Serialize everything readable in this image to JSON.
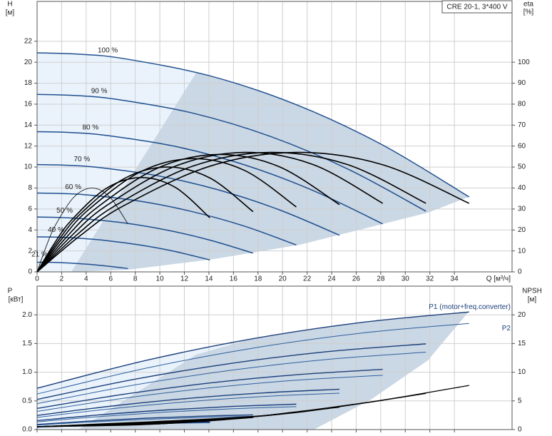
{
  "header": {
    "model": "CRE 20-1, 3*400 V"
  },
  "chart_data": [
    {
      "type": "line",
      "y_label": "H",
      "y_unit": "[м]",
      "y2_label": "eta",
      "y2_unit": "[%]",
      "x_label": "Q [м³/ч]",
      "xlim": [
        0,
        38.7
      ],
      "xticks": [
        0,
        2,
        4,
        6,
        8,
        10,
        12,
        14,
        16,
        18,
        20,
        22,
        24,
        26,
        28,
        30,
        32,
        34
      ],
      "xtick_labels": true,
      "ylim": [
        0,
        25.8
      ],
      "yticks": [
        0,
        2,
        4,
        6,
        8,
        10,
        12,
        14,
        16,
        18,
        20,
        22
      ],
      "y2lim": [
        0,
        129
      ],
      "y2ticks": [
        0,
        10,
        20,
        30,
        40,
        50,
        60,
        70,
        80,
        90,
        100
      ],
      "grid": true,
      "series_label_position": "start",
      "series": [
        {
          "name": "100 %",
          "color": "#1f4f8f",
          "width": 1.5,
          "x": [
            0,
            3.52,
            7.04,
            14.08,
            21.12,
            28.16,
            35.2
          ],
          "values": [
            20.9,
            20.76,
            20.35,
            18.7,
            15.95,
            12.1,
            7.15
          ]
        },
        {
          "name": "90 %",
          "color": "#1f4f8f",
          "width": 1.5,
          "x": [
            0,
            3.17,
            6.34,
            12.67,
            19.01,
            25.34,
            31.68
          ],
          "values": [
            16.93,
            16.82,
            16.48,
            15.15,
            12.92,
            9.8,
            5.79
          ]
        },
        {
          "name": "80 %",
          "color": "#1f4f8f",
          "width": 1.5,
          "x": [
            0,
            2.82,
            5.63,
            11.26,
            16.9,
            22.53,
            28.16
          ],
          "values": [
            13.38,
            13.29,
            13.02,
            11.97,
            10.21,
            7.74,
            4.58
          ]
        },
        {
          "name": "70 %",
          "color": "#1f4f8f",
          "width": 1.5,
          "x": [
            0,
            2.46,
            4.93,
            9.86,
            14.78,
            19.71,
            24.64
          ],
          "values": [
            10.24,
            10.17,
            9.97,
            9.16,
            7.82,
            5.93,
            3.5
          ]
        },
        {
          "name": "60 %",
          "color": "#1f4f8f",
          "width": 1.5,
          "x": [
            0,
            2.11,
            4.22,
            8.45,
            12.67,
            16.9,
            21.12
          ],
          "values": [
            7.52,
            7.47,
            7.33,
            6.73,
            5.74,
            4.36,
            2.57
          ]
        },
        {
          "name": "50 %",
          "color": "#1f4f8f",
          "width": 1.5,
          "x": [
            0,
            1.76,
            3.52,
            7.04,
            10.56,
            14.08,
            17.6
          ],
          "values": [
            5.23,
            5.19,
            5.09,
            4.68,
            3.99,
            3.03,
            1.79
          ]
        },
        {
          "name": "40 %",
          "color": "#1f4f8f",
          "width": 1.5,
          "x": [
            0,
            1.41,
            2.82,
            5.63,
            8.45,
            11.26,
            14.08
          ],
          "values": [
            3.34,
            3.32,
            3.26,
            2.99,
            2.55,
            1.94,
            1.14
          ]
        },
        {
          "name": "21 %",
          "color": "#1f4f8f",
          "width": 1.5,
          "x": [
            0,
            0.74,
            1.48,
            2.96,
            4.44,
            5.91,
            7.39
          ],
          "values": [
            0.92,
            0.92,
            0.9,
            0.82,
            0.7,
            0.53,
            0.32
          ]
        },
        {
          "color": "#000000",
          "width": 1.6,
          "axis": "y2",
          "x": [
            0,
            3.52,
            7.04,
            14.08,
            21.12,
            28.16,
            35.2
          ],
          "values": [
            0,
            17.3,
            31.5,
            50.4,
            57,
            51.1,
            32.7
          ]
        },
        {
          "color": "#000000",
          "width": 1.6,
          "axis": "y2",
          "x": [
            0,
            3.17,
            6.34,
            12.67,
            19.01,
            25.34,
            31.68
          ],
          "values": [
            0,
            17.3,
            31.5,
            50.4,
            57,
            51.1,
            32.7
          ]
        },
        {
          "color": "#000000",
          "width": 1.6,
          "axis": "y2",
          "x": [
            0,
            2.82,
            5.63,
            11.26,
            16.9,
            22.53,
            28.16
          ],
          "values": [
            0,
            17.3,
            31.5,
            50.4,
            57,
            51.1,
            32.7
          ]
        },
        {
          "color": "#000000",
          "width": 1.6,
          "axis": "y2",
          "x": [
            0,
            2.46,
            4.93,
            9.86,
            14.78,
            19.71,
            24.64
          ],
          "values": [
            0,
            17,
            30.9,
            49.6,
            56,
            50.2,
            32.1
          ]
        },
        {
          "color": "#000000",
          "width": 1.6,
          "axis": "y2",
          "x": [
            0,
            2.11,
            4.22,
            8.45,
            12.67,
            16.9,
            21.12
          ],
          "values": [
            0,
            16.4,
            29.8,
            47.8,
            54,
            48.4,
            31
          ]
        },
        {
          "color": "#000000",
          "width": 1.6,
          "axis": "y2",
          "x": [
            0,
            1.76,
            3.52,
            7.04,
            10.56,
            14.08,
            17.6
          ],
          "values": [
            0,
            15.2,
            27.6,
            44.3,
            50,
            44.8,
            28.7
          ]
        },
        {
          "color": "#000000",
          "width": 1.6,
          "axis": "y2",
          "x": [
            0,
            1.41,
            2.82,
            5.63,
            8.45,
            11.26,
            14.08
          ],
          "values": [
            0,
            13.6,
            24.8,
            39.8,
            45,
            40.3,
            25.8
          ]
        },
        {
          "color": "#000000",
          "width": 0.8,
          "axis": "y2",
          "x": [
            0,
            0.74,
            1.48,
            2.96,
            4.44,
            5.91,
            7.39
          ],
          "values": [
            0,
            12.1,
            22.1,
            35.4,
            40,
            35.8,
            23
          ]
        }
      ]
    },
    {
      "type": "line",
      "y_label": "P",
      "y_unit": "[кВт]",
      "y2_label": "NPSH",
      "y2_unit": "[м]",
      "xlim": [
        0,
        38.7
      ],
      "xticks": [
        0,
        2,
        4,
        6,
        8,
        10,
        12,
        14,
        16,
        18,
        20,
        22,
        24,
        26,
        28,
        30,
        32,
        34
      ],
      "xtick_labels": false,
      "ylim": [
        0,
        2.5
      ],
      "yticks": [
        {
          "value": 0,
          "label": "0.0"
        },
        0.5,
        {
          "value": 1,
          "label": "1.0"
        },
        1.5,
        {
          "value": 2,
          "label": "2.0"
        }
      ],
      "y2lim": [
        0,
        25
      ],
      "y2ticks": [
        0,
        5,
        10,
        15,
        20
      ],
      "grid": true,
      "series_label_position": "end",
      "series": [
        {
          "name": "P1 (motor+freq.converter)",
          "color": "#1b3f7a",
          "width": 1.4,
          "x": [
            0,
            8.8,
            17.6,
            26.4,
            35.2
          ],
          "values": [
            0.72,
            1.202,
            1.585,
            1.867,
            2.05
          ]
        },
        {
          "name": "P2",
          "color": "#2e5f9e",
          "width": 1,
          "x": [
            0,
            8.8,
            17.6,
            26.4,
            35.2
          ],
          "values": [
            0.62,
            1.066,
            1.42,
            1.681,
            1.85
          ]
        },
        {
          "color": "#1b3f7a",
          "width": 1.4,
          "x": [
            0,
            7.92,
            15.84,
            23.76,
            31.68
          ],
          "values": [
            0.525,
            0.876,
            1.155,
            1.361,
            1.494
          ]
        },
        {
          "color": "#2e5f9e",
          "width": 1,
          "x": [
            0,
            7.92,
            15.84,
            23.76,
            31.68
          ],
          "values": [
            0.452,
            0.777,
            1.035,
            1.225,
            1.349
          ]
        },
        {
          "color": "#1b3f7a",
          "width": 1.4,
          "x": [
            0,
            7.04,
            14.08,
            21.12,
            28.16
          ],
          "values": [
            0.369,
            0.615,
            0.812,
            0.956,
            1.05
          ]
        },
        {
          "color": "#2e5f9e",
          "width": 1,
          "x": [
            0,
            7.04,
            14.08,
            21.12,
            28.16
          ],
          "values": [
            0.317,
            0.546,
            0.727,
            0.861,
            0.947
          ]
        },
        {
          "color": "#1b3f7a",
          "width": 1.4,
          "x": [
            0,
            6.16,
            12.32,
            18.48,
            24.64
          ],
          "values": [
            0.247,
            0.412,
            0.544,
            0.64,
            0.703
          ]
        },
        {
          "color": "#2e5f9e",
          "width": 1,
          "x": [
            0,
            6.16,
            12.32,
            18.48,
            24.64
          ],
          "values": [
            0.213,
            0.366,
            0.487,
            0.577,
            0.635
          ]
        },
        {
          "color": "#1b3f7a",
          "width": 1.4,
          "x": [
            0,
            5.28,
            10.56,
            15.84,
            21.12
          ],
          "values": [
            0.156,
            0.26,
            0.342,
            0.403,
            0.443
          ]
        },
        {
          "color": "#2e5f9e",
          "width": 1,
          "x": [
            0,
            5.28,
            10.56,
            15.84,
            21.12
          ],
          "values": [
            0.134,
            0.23,
            0.307,
            0.363,
            0.4
          ]
        },
        {
          "color": "#1b3f7a",
          "width": 1.4,
          "x": [
            0,
            4.4,
            8.8,
            13.2,
            17.6
          ],
          "values": [
            0.09,
            0.15,
            0.198,
            0.233,
            0.256
          ]
        },
        {
          "color": "#2e5f9e",
          "width": 1,
          "x": [
            0,
            4.4,
            8.8,
            13.2,
            17.6
          ],
          "values": [
            0.078,
            0.133,
            0.178,
            0.21,
            0.231
          ]
        },
        {
          "color": "#1b3f7a",
          "width": 1.4,
          "x": [
            0,
            3.52,
            7.04,
            10.56,
            14.08
          ],
          "values": [
            0.046,
            0.077,
            0.101,
            0.119,
            0.131
          ]
        },
        {
          "color": "#2e5f9e",
          "width": 1,
          "x": [
            0,
            3.52,
            7.04,
            10.56,
            14.08
          ],
          "values": [
            0.04,
            0.068,
            0.091,
            0.108,
            0.118
          ]
        },
        {
          "color": "#000000",
          "width": 1.3,
          "axis": "y2",
          "x": [
            0,
            17.6,
            26.4,
            35.2
          ],
          "values": [
            0.5,
            2.3,
            4.55,
            7.7
          ]
        },
        {
          "color": "#000000",
          "width": 1.3,
          "axis": "y2",
          "x": [
            0,
            15.84,
            23.76,
            31.68
          ],
          "values": [
            0.5,
            1.95,
            3.76,
            6.3
          ]
        },
        {
          "color": "#000000",
          "width": 1.3,
          "axis": "y2",
          "x": [
            0,
            14.08,
            21.12,
            28.16
          ],
          "values": [
            0.5,
            1.65,
            3.09,
            5.1
          ]
        },
        {
          "color": "#000000",
          "width": 1.3,
          "axis": "y2",
          "x": [
            0,
            12.32,
            18.48,
            24.64
          ],
          "values": [
            0.5,
            1.35,
            2.41,
            3.9
          ]
        },
        {
          "color": "#000000",
          "width": 1.3,
          "axis": "y2",
          "x": [
            0,
            10.56,
            15.84,
            21.12
          ],
          "values": [
            0.5,
            1.13,
            1.91,
            3.0
          ]
        },
        {
          "color": "#000000",
          "width": 1.3,
          "axis": "y2",
          "x": [
            0,
            8.8,
            13.2,
            17.6
          ],
          "values": [
            0.5,
            0.9,
            1.4,
            2.1
          ]
        },
        {
          "color": "#000000",
          "width": 1.3,
          "axis": "y2",
          "x": [
            0,
            7.04,
            10.56,
            14.08
          ],
          "values": [
            0.5,
            0.75,
            1.06,
            1.5
          ]
        }
      ]
    }
  ]
}
